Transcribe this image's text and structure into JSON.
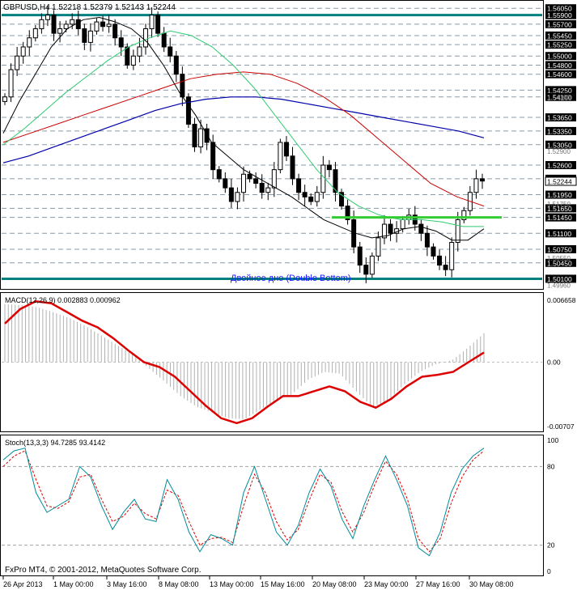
{
  "header": {
    "symbol_timeframe": "GBPUSD,H4",
    "ohlc": "1.52218 1.52379 1.52143 1.52244",
    "copyright": "FxPro MT4, © 2001-2012, MetaQuotes Software Corp."
  },
  "colors": {
    "price_line": "#008080",
    "candle": "#000000",
    "ma_fast": "#000000",
    "ma_mid": "#2ecc71",
    "ma_slow": "#cc0000",
    "ma_long": "#0000aa",
    "neckline": "#33cc33",
    "macd_hist": "#b0b0b0",
    "macd_signal": "#dd0000",
    "stoch_main": "#008b9b",
    "stoch_signal": "#dd0000",
    "annotation": "#1a1aff",
    "grid": "#8a9aa8"
  },
  "chart_data": [
    {
      "type": "candlestick",
      "title": "GBPUSD,H4",
      "ylim": [
        1.4993,
        1.5609
      ],
      "price_levels": [
        "1.56050",
        "1.55900",
        "1.55700",
        "1.55450",
        "1.55250",
        "1.55000",
        "1.54800",
        "1.54600",
        "1.54250",
        "1.54100",
        "1.53650",
        "1.53350",
        "1.53050",
        "1.52600",
        "1.52300",
        "1.51950",
        "1.51650",
        "1.51450",
        "1.51100",
        "1.50750",
        "1.50450",
        "1.50100"
      ],
      "faint_labels": [
        "1.54100",
        "1.52900",
        "1.51750",
        "1.50550",
        "1.49960"
      ],
      "current_price": "1.52244",
      "neckline_price": 1.5145,
      "annotation": "Двойное дно (Double Bottom)",
      "x_labels": [
        "26 Apr 2013",
        "1 May 00:00",
        "3 May 16:00",
        "8 May 08:00",
        "13 May 00:00",
        "15 May 16:00",
        "20 May 08:00",
        "23 May 00:00",
        "27 May 16:00",
        "30 May 08:00"
      ],
      "close_path": [
        1.541,
        1.547,
        1.55,
        1.552,
        1.554,
        1.556,
        1.558,
        1.559,
        1.555,
        1.556,
        1.557,
        1.558,
        1.556,
        1.553,
        1.5555,
        1.5575,
        1.5565,
        1.557,
        1.554,
        1.552,
        1.548,
        1.55,
        1.552,
        1.556,
        1.559,
        1.555,
        1.552,
        1.55,
        1.546,
        1.541,
        1.535,
        1.53,
        1.534,
        1.531,
        1.525,
        1.523,
        1.521,
        1.518,
        1.52,
        1.524,
        1.523,
        1.522,
        1.52,
        1.521,
        1.525,
        1.531,
        1.528,
        1.523,
        1.52,
        1.519,
        1.518,
        1.52,
        1.526,
        1.525,
        1.52,
        1.517,
        1.514,
        1.508,
        1.504,
        1.502,
        1.506,
        1.51,
        1.513,
        1.511,
        1.512,
        1.514,
        1.515,
        1.513,
        1.511,
        1.508,
        1.506,
        1.504,
        1.503,
        1.509,
        1.514,
        1.516,
        1.52,
        1.523,
        1.5225
      ],
      "ma_fast": [
        1.533,
        1.54,
        1.546,
        1.552,
        1.556,
        1.558,
        1.5585,
        1.5575,
        1.556,
        1.553,
        1.548,
        1.542,
        1.537,
        1.531,
        1.528,
        1.525,
        1.523,
        1.521,
        1.519,
        1.5165,
        1.514,
        1.5125,
        1.511,
        1.51,
        1.5105,
        1.512,
        1.5125,
        1.5115,
        1.5095,
        1.5095,
        1.512
      ],
      "ma_mid": [
        1.5305,
        1.534,
        1.538,
        1.542,
        1.5455,
        1.549,
        1.552,
        1.554,
        1.5555,
        1.5545,
        1.552,
        1.548,
        1.543,
        1.537,
        1.531,
        1.525,
        1.52,
        1.517,
        1.515,
        1.514,
        1.514,
        1.5135,
        1.5125,
        1.5125
      ],
      "ma_slow": [
        1.531,
        1.533,
        1.535,
        1.537,
        1.539,
        1.541,
        1.543,
        1.545,
        1.546,
        1.5465,
        1.546,
        1.544,
        1.541,
        1.537,
        1.532,
        1.527,
        1.522,
        1.519,
        1.517
      ],
      "ma_long": [
        1.5265,
        1.528,
        1.53,
        1.532,
        1.534,
        1.536,
        1.538,
        1.5395,
        1.5405,
        1.541,
        1.541,
        1.5405,
        1.5395,
        1.5385,
        1.5375,
        1.5365,
        1.5355,
        1.5345,
        1.5335,
        1.532
      ]
    },
    {
      "type": "line",
      "title": "MACD(12,26,9) 0.002883 0.000962",
      "ylim": [
        -0.00707,
        0.006658
      ],
      "tick_labels": [
        "0.006658",
        "0.00",
        "-0.00707"
      ],
      "series": [
        {
          "name": "MACD",
          "values": [
            0.006,
            0.0059,
            0.0057,
            0.0052,
            0.0046,
            0.0038,
            0.0028,
            0.0018,
            0.0008,
            -0.0006,
            -0.002,
            -0.0035,
            -0.0046,
            -0.0052,
            -0.0058,
            -0.0059,
            -0.0049,
            -0.004,
            -0.0033,
            -0.0018,
            -0.001,
            -0.0012,
            -0.003,
            -0.0046,
            -0.004,
            -0.0023,
            -0.001,
            -0.0002,
            0.0002,
            0.0015,
            0.003
          ]
        },
        {
          "name": "Signal",
          "values": [
            0.004,
            0.0055,
            0.0063,
            0.0061,
            0.0052,
            0.0043,
            0.0036,
            0.0025,
            0.0012,
            0.0,
            -0.0005,
            -0.0015,
            -0.003,
            -0.0045,
            -0.0058,
            -0.0063,
            -0.0058,
            -0.0046,
            -0.0035,
            -0.0035,
            -0.003,
            -0.0025,
            -0.003,
            -0.0041,
            -0.0047,
            -0.0038,
            -0.0025,
            -0.0015,
            -0.0013,
            -0.001,
            0.0,
            0.001
          ]
        }
      ]
    },
    {
      "type": "line",
      "title": "Stoch(13,3,3) 94.7285 93.4142",
      "ylim": [
        0,
        100
      ],
      "levels": [
        20,
        80
      ],
      "tick_labels": [
        "100",
        "80",
        "20",
        "0"
      ],
      "series": [
        {
          "name": "Main",
          "values": [
            85,
            92,
            94,
            60,
            45,
            50,
            55,
            80,
            72,
            50,
            32,
            45,
            55,
            40,
            38,
            70,
            55,
            30,
            15,
            28,
            25,
            20,
            60,
            80,
            55,
            30,
            20,
            35,
            60,
            78,
            65,
            40,
            25,
            50,
            70,
            88,
            70,
            50,
            18,
            12,
            30,
            60,
            78,
            88,
            94
          ]
        },
        {
          "name": "Signal",
          "values": [
            80,
            88,
            92,
            70,
            50,
            48,
            53,
            72,
            74,
            55,
            38,
            42,
            52,
            44,
            40,
            62,
            58,
            38,
            20,
            25,
            26,
            22,
            50,
            74,
            60,
            38,
            24,
            32,
            54,
            74,
            68,
            46,
            30,
            45,
            66,
            84,
            74,
            55,
            25,
            15,
            25,
            52,
            72,
            85,
            92
          ]
        }
      ]
    }
  ]
}
